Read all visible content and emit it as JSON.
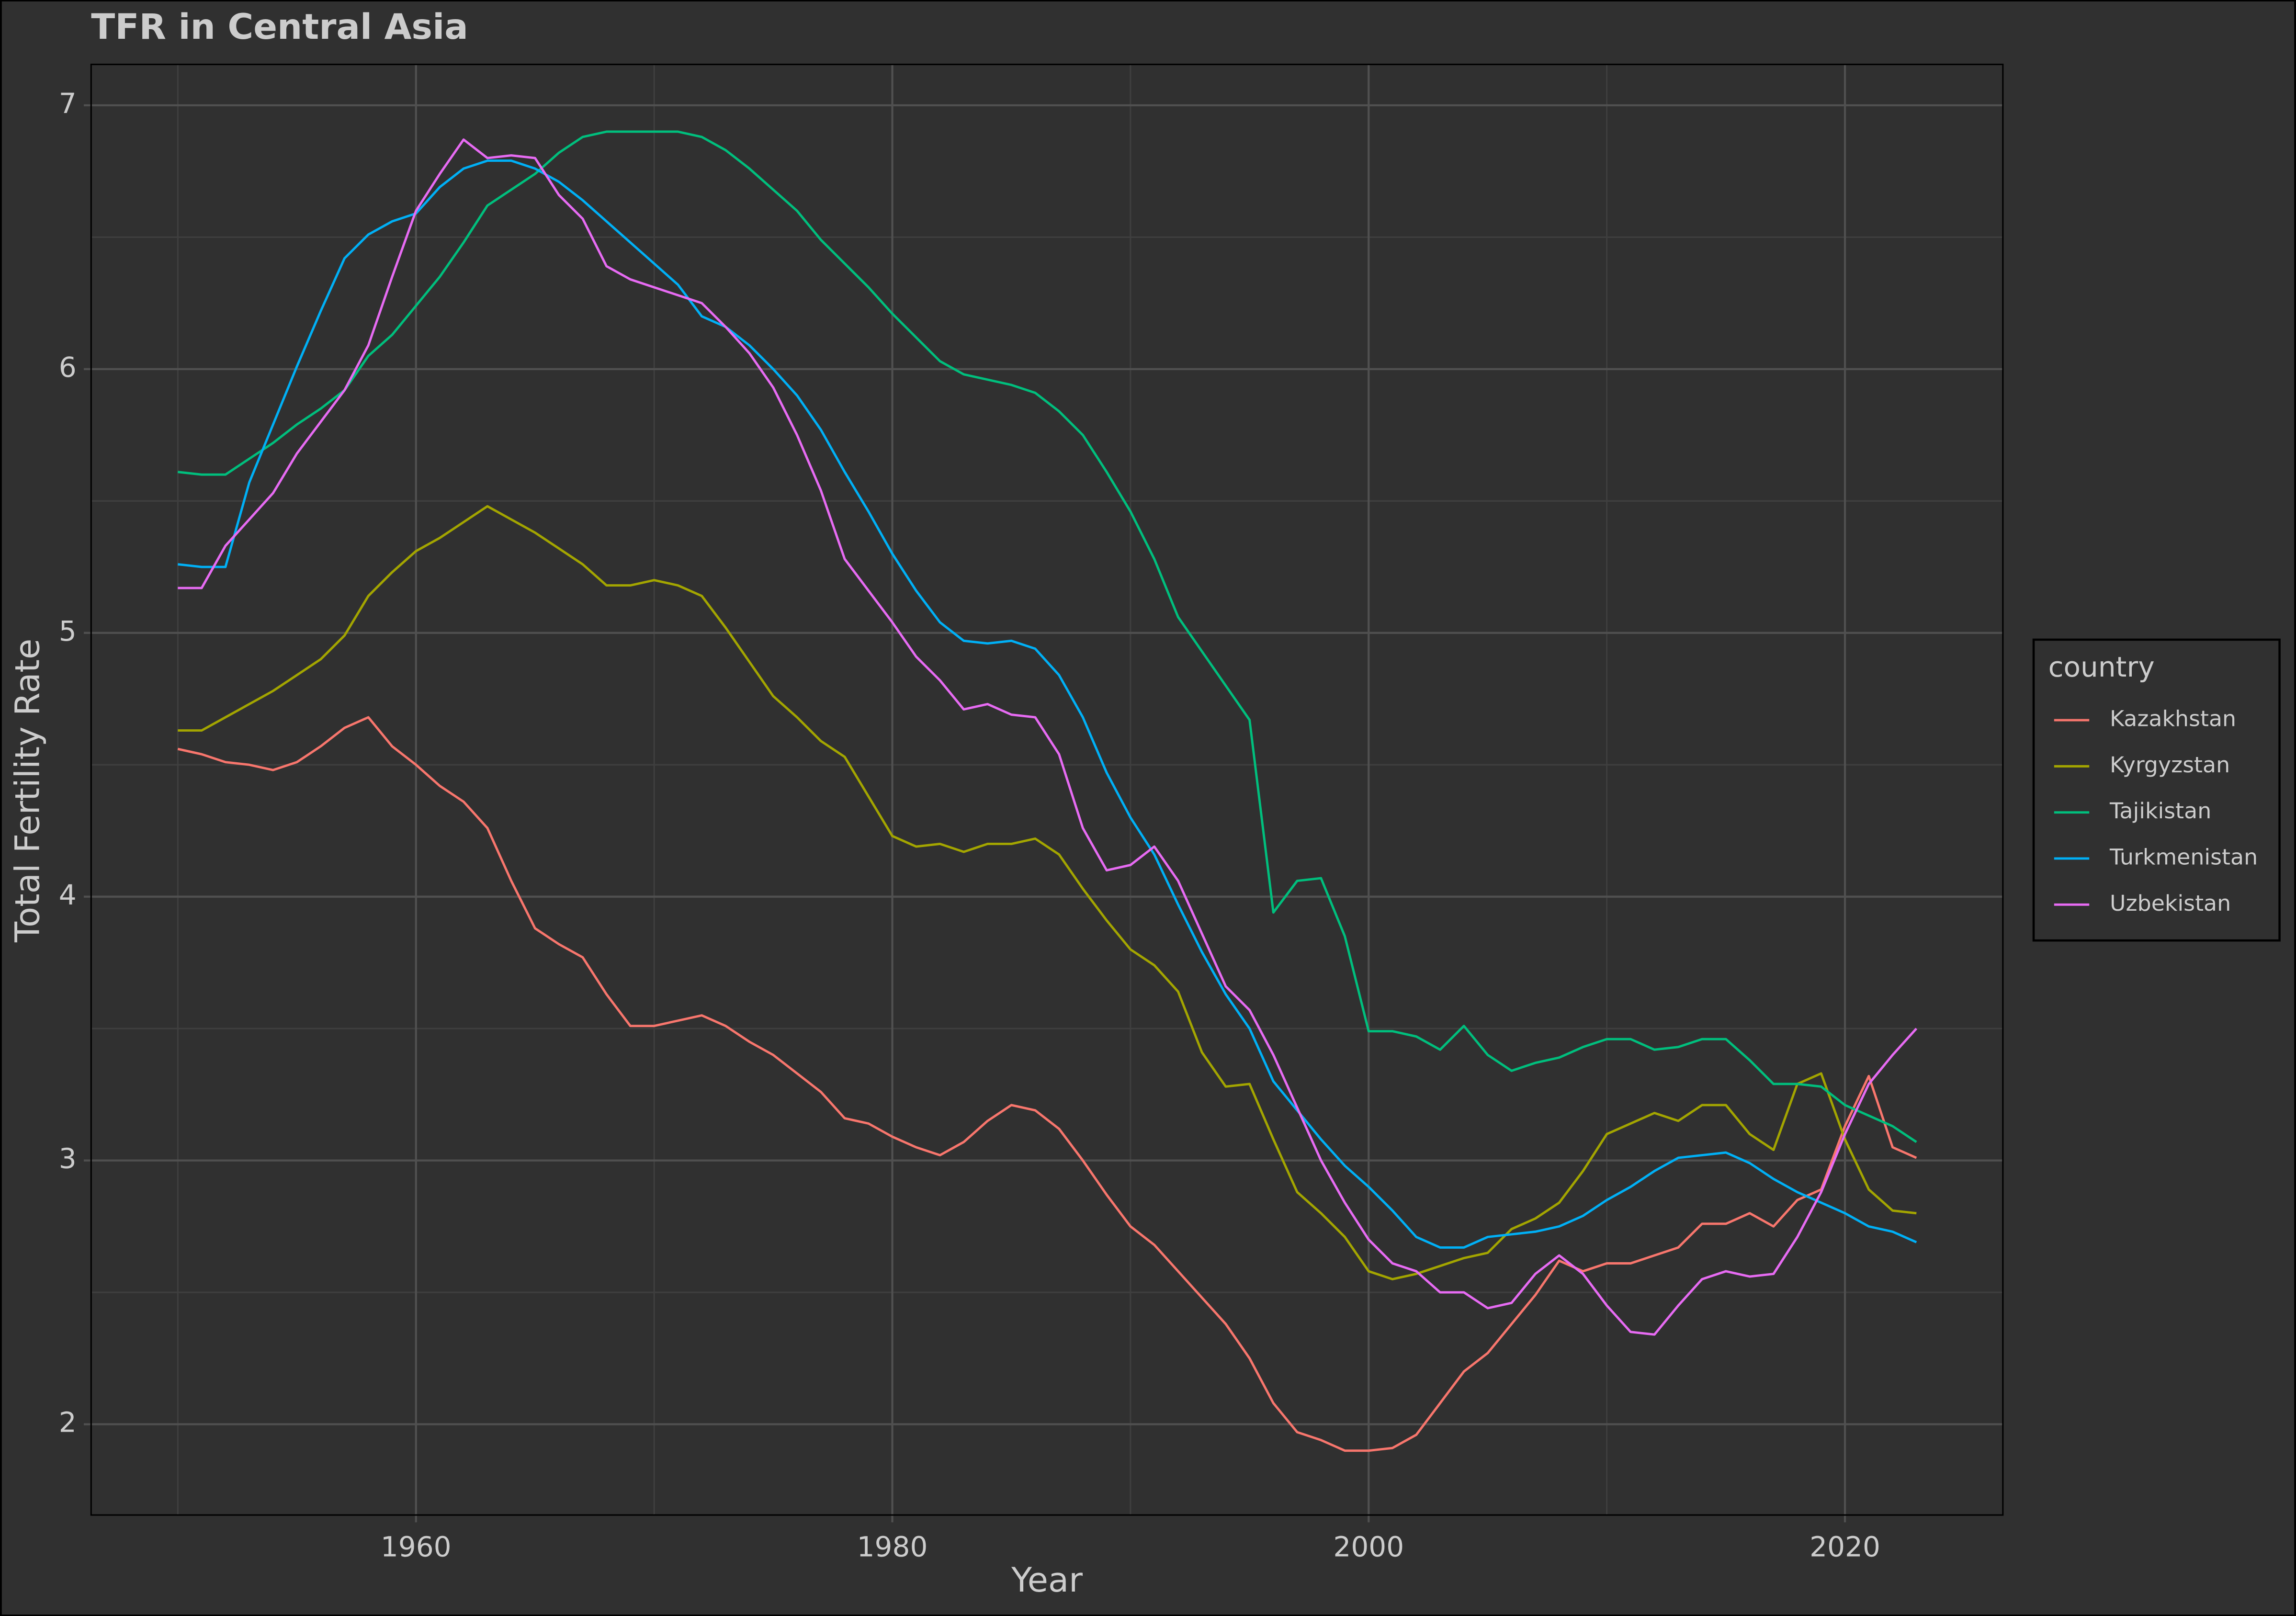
{
  "chart_data": {
    "type": "line",
    "title": "TFR in Central Asia",
    "x_label": "Year",
    "y_label": "Total Fertility Rate",
    "legend_title": "country",
    "legend_position": "right",
    "grid": true,
    "x": [
      1950,
      1951,
      1952,
      1953,
      1954,
      1955,
      1956,
      1957,
      1958,
      1959,
      1960,
      1961,
      1962,
      1963,
      1964,
      1965,
      1966,
      1967,
      1968,
      1969,
      1970,
      1971,
      1972,
      1973,
      1974,
      1975,
      1976,
      1977,
      1978,
      1979,
      1980,
      1981,
      1982,
      1983,
      1984,
      1985,
      1986,
      1987,
      1988,
      1989,
      1990,
      1991,
      1992,
      1993,
      1994,
      1995,
      1996,
      1997,
      1998,
      1999,
      2000,
      2001,
      2002,
      2003,
      2004,
      2005,
      2006,
      2007,
      2008,
      2009,
      2010,
      2011,
      2012,
      2013,
      2014,
      2015,
      2016,
      2017,
      2018,
      2019,
      2020,
      2021,
      2022,
      2023
    ],
    "xlim": [
      1946.36,
      2026.63
    ],
    "xticks": [
      1960,
      1980,
      2000,
      2020
    ],
    "ylim": [
      1.656,
      7.155
    ],
    "yticks": [
      2,
      3,
      4,
      5,
      6,
      7
    ],
    "series": [
      {
        "name": "Kazakhstan",
        "color": "#F8766D",
        "values": [
          4.56,
          4.54,
          4.51,
          4.5,
          4.48,
          4.51,
          4.57,
          4.64,
          4.68,
          4.57,
          4.5,
          4.42,
          4.36,
          4.26,
          4.06,
          3.88,
          3.82,
          3.77,
          3.63,
          3.51,
          3.51,
          3.53,
          3.55,
          3.51,
          3.45,
          3.4,
          3.33,
          3.26,
          3.16,
          3.14,
          3.09,
          3.05,
          3.02,
          3.07,
          3.15,
          3.21,
          3.19,
          3.12,
          3.0,
          2.87,
          2.75,
          2.68,
          2.58,
          2.48,
          2.38,
          2.25,
          2.08,
          1.97,
          1.94,
          1.9,
          1.9,
          1.91,
          1.96,
          2.08,
          2.2,
          2.27,
          2.38,
          2.49,
          2.62,
          2.58,
          2.61,
          2.61,
          2.64,
          2.67,
          2.76,
          2.76,
          2.8,
          2.75,
          2.85,
          2.89,
          3.13,
          3.32,
          3.05,
          3.01
        ]
      },
      {
        "name": "Kyrgyzstan",
        "color": "#A3A500",
        "values": [
          4.63,
          4.63,
          4.68,
          4.73,
          4.78,
          4.84,
          4.9,
          4.99,
          5.14,
          5.23,
          5.31,
          5.36,
          5.42,
          5.48,
          5.43,
          5.38,
          5.32,
          5.26,
          5.18,
          5.18,
          5.2,
          5.18,
          5.14,
          5.02,
          4.89,
          4.76,
          4.68,
          4.59,
          4.53,
          4.38,
          4.23,
          4.19,
          4.2,
          4.17,
          4.2,
          4.2,
          4.22,
          4.16,
          4.03,
          3.91,
          3.8,
          3.74,
          3.64,
          3.41,
          3.28,
          3.29,
          3.08,
          2.88,
          2.8,
          2.71,
          2.58,
          2.55,
          2.57,
          2.6,
          2.63,
          2.65,
          2.74,
          2.78,
          2.84,
          2.96,
          3.1,
          3.14,
          3.18,
          3.15,
          3.21,
          3.21,
          3.1,
          3.04,
          3.29,
          3.33,
          3.08,
          2.89,
          2.81,
          2.8
        ]
      },
      {
        "name": "Tajikistan",
        "color": "#00BF7D",
        "values": [
          5.61,
          5.6,
          5.6,
          5.66,
          5.72,
          5.79,
          5.85,
          5.92,
          6.05,
          6.13,
          6.24,
          6.35,
          6.48,
          6.62,
          6.68,
          6.74,
          6.82,
          6.88,
          6.9,
          6.9,
          6.9,
          6.9,
          6.88,
          6.83,
          6.76,
          6.68,
          6.6,
          6.49,
          6.4,
          6.31,
          6.21,
          6.12,
          6.03,
          5.98,
          5.96,
          5.94,
          5.91,
          5.84,
          5.75,
          5.61,
          5.46,
          5.28,
          5.06,
          4.93,
          4.8,
          4.67,
          3.94,
          4.06,
          4.07,
          3.85,
          3.49,
          3.49,
          3.47,
          3.42,
          3.51,
          3.4,
          3.34,
          3.37,
          3.39,
          3.43,
          3.46,
          3.46,
          3.42,
          3.43,
          3.46,
          3.46,
          3.38,
          3.29,
          3.29,
          3.28,
          3.21,
          3.17,
          3.13,
          3.07
        ]
      },
      {
        "name": "Turkmenistan",
        "color": "#00B0F6",
        "values": [
          5.26,
          5.25,
          5.25,
          5.57,
          5.79,
          6.01,
          6.22,
          6.42,
          6.51,
          6.56,
          6.59,
          6.69,
          6.76,
          6.79,
          6.79,
          6.76,
          6.71,
          6.64,
          6.56,
          6.48,
          6.4,
          6.32,
          6.2,
          6.16,
          6.09,
          6.0,
          5.9,
          5.77,
          5.61,
          5.46,
          5.3,
          5.16,
          5.04,
          4.97,
          4.96,
          4.97,
          4.94,
          4.84,
          4.68,
          4.47,
          4.3,
          4.16,
          3.97,
          3.79,
          3.63,
          3.5,
          3.3,
          3.19,
          3.08,
          2.98,
          2.9,
          2.81,
          2.71,
          2.67,
          2.67,
          2.71,
          2.72,
          2.73,
          2.75,
          2.79,
          2.85,
          2.9,
          2.96,
          3.01,
          3.02,
          3.03,
          2.99,
          2.93,
          2.88,
          2.84,
          2.8,
          2.75,
          2.73,
          2.69
        ]
      },
      {
        "name": "Uzbekistan",
        "color": "#E76BF3",
        "values": [
          5.17,
          5.17,
          5.33,
          5.43,
          5.53,
          5.68,
          5.8,
          5.92,
          6.09,
          6.35,
          6.6,
          6.74,
          6.87,
          6.8,
          6.81,
          6.8,
          6.66,
          6.57,
          6.39,
          6.34,
          6.31,
          6.28,
          6.25,
          6.16,
          6.06,
          5.93,
          5.75,
          5.54,
          5.28,
          5.16,
          5.04,
          4.91,
          4.82,
          4.71,
          4.73,
          4.69,
          4.68,
          4.54,
          4.26,
          4.1,
          4.12,
          4.19,
          4.06,
          3.86,
          3.66,
          3.57,
          3.4,
          3.2,
          3.0,
          2.84,
          2.7,
          2.61,
          2.58,
          2.5,
          2.5,
          2.44,
          2.46,
          2.57,
          2.64,
          2.57,
          2.45,
          2.35,
          2.34,
          2.45,
          2.55,
          2.58,
          2.56,
          2.57,
          2.71,
          2.88,
          3.1,
          3.29,
          3.4,
          3.5
        ]
      }
    ]
  }
}
